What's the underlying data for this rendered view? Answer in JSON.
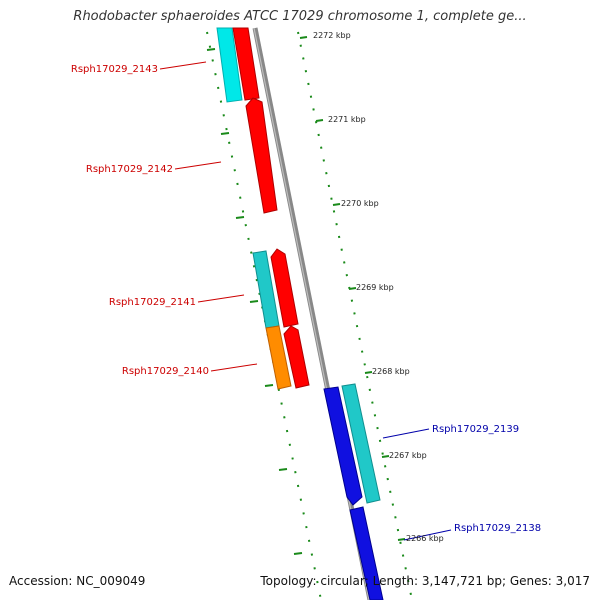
{
  "title": "Rhodobacter sphaeroides ATCC 17029 chromosome 1, complete ge...",
  "accession": "Accession: NC_009049",
  "summary": "Topology: circular; Length: 3,147,721 bp; Genes: 3,017",
  "colors": {
    "backbone": "#888888",
    "tick": "#1a8a1a",
    "gene_red": "#ff0000",
    "gene_cyan": "#00e0e0",
    "gene_teal": "#20c8c8",
    "gene_orange": "#ff8c00",
    "gene_blue": "#1010e0",
    "label_red": "#cc0000",
    "label_blue": "#0000aa"
  },
  "ticks": [
    {
      "label": "2272 kbp"
    },
    {
      "label": "2271 kbp"
    },
    {
      "label": "2270 kbp"
    },
    {
      "label": "2269 kbp"
    },
    {
      "label": "2268 kbp"
    },
    {
      "label": "2267 kbp"
    },
    {
      "label": "2266 kbp"
    }
  ],
  "gene_labels": [
    {
      "text": "Rsph17029_2143",
      "color": "label_red"
    },
    {
      "text": "Rsph17029_2142",
      "color": "label_red"
    },
    {
      "text": "Rsph17029_2141",
      "color": "label_red"
    },
    {
      "text": "Rsph17029_2140",
      "color": "label_red"
    },
    {
      "text": "Rsph17029_2139",
      "color": "label_blue"
    },
    {
      "text": "Rsph17029_2138",
      "color": "label_blue"
    }
  ]
}
